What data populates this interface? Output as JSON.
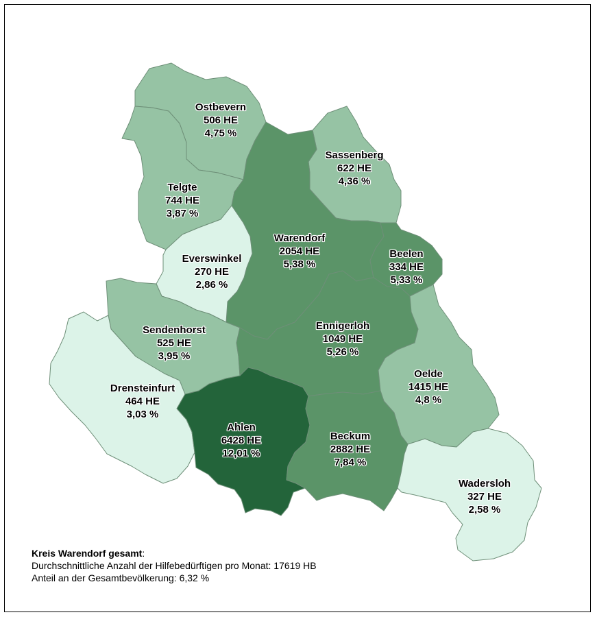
{
  "colors": {
    "darkest": "#23643a",
    "dark": "#5b9468",
    "medium": "#96c3a4",
    "light": "#dcf3e8",
    "border": "#6e8f78"
  },
  "regions": [
    {
      "id": "ostbevern",
      "name": "Ostbevern",
      "he": "506 HE",
      "pct": "4,75 %",
      "shade": "medium"
    },
    {
      "id": "telgte",
      "name": "Telgte",
      "he": "744 HE",
      "pct": "3,87 %",
      "shade": "medium"
    },
    {
      "id": "sassenberg",
      "name": "Sassenberg",
      "he": "622 HE",
      "pct": "4,36 %",
      "shade": "medium"
    },
    {
      "id": "warendorf",
      "name": "Warendorf",
      "he": "2054 HE",
      "pct": "5,38 %",
      "shade": "dark"
    },
    {
      "id": "beelen",
      "name": "Beelen",
      "he": "334 HE",
      "pct": "5,33 %",
      "shade": "dark"
    },
    {
      "id": "everswinkel",
      "name": "Everswinkel",
      "he": "270 HE",
      "pct": "2,86 %",
      "shade": "light"
    },
    {
      "id": "sendenhorst",
      "name": "Sendenhorst",
      "he": "525 HE",
      "pct": "3,95 %",
      "shade": "medium"
    },
    {
      "id": "ennigerloh",
      "name": "Ennigerloh",
      "he": "1049 HE",
      "pct": "5,26 %",
      "shade": "dark"
    },
    {
      "id": "drensteinfurt",
      "name": "Drensteinfurt",
      "he": "464 HE",
      "pct": "3,03 %",
      "shade": "light"
    },
    {
      "id": "oelde",
      "name": "Oelde",
      "he": "1415 HE",
      "pct": "4,8 %",
      "shade": "medium"
    },
    {
      "id": "ahlen",
      "name": "Ahlen",
      "he": "6428 HE",
      "pct": "12,01 %",
      "shade": "darkest"
    },
    {
      "id": "beckum",
      "name": "Beckum",
      "he": "2882 HE",
      "pct": "7,84 %",
      "shade": "dark"
    },
    {
      "id": "wadersloh",
      "name": "Wadersloh",
      "he": "327 HE",
      "pct": "2,58 %",
      "shade": "light"
    }
  ],
  "summary": {
    "title": "Kreis Warendorf gesamt",
    "line1": "Durchschnittliche Anzahl der Hilfebedürftigen pro Monat: 17619 HB",
    "line2": "Anteil an der Gesamtbevölkerung: 6,32 %"
  }
}
